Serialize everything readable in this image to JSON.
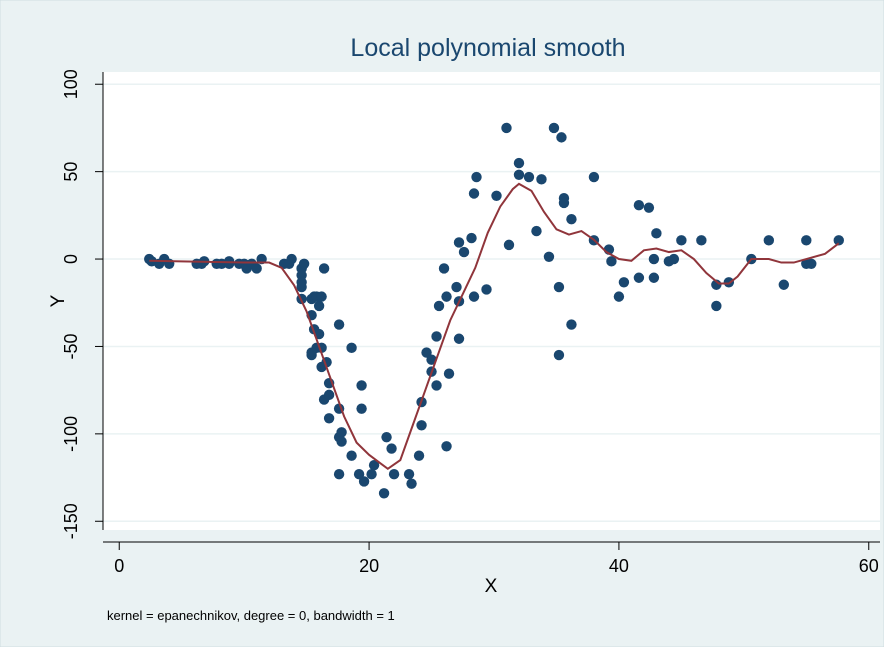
{
  "chart_data": {
    "type": "scatter",
    "title": "Local polynomial smooth",
    "xlabel": "X",
    "ylabel": "Y",
    "note": "kernel = epanechnikov, degree = 0, bandwidth = 1",
    "xlim": [
      -1.3,
      60.9
    ],
    "ylim": [
      -155,
      107
    ],
    "xticks": [
      0,
      20,
      40,
      60
    ],
    "yticks": [
      -150,
      -100,
      -50,
      0,
      50,
      100
    ],
    "grid": true,
    "points": {
      "color": "#1a476f",
      "x": [
        2.4,
        2.6,
        3.2,
        3.6,
        4,
        6.2,
        6.6,
        6.8,
        7.8,
        8.2,
        8.8,
        8.8,
        9.6,
        10,
        10.2,
        10.6,
        11,
        11.4,
        13.2,
        13.6,
        13.8,
        14.6,
        14.6,
        14.6,
        14.6,
        14.6,
        14.6,
        14.8,
        15.4,
        15.4,
        15.4,
        15.4,
        15.6,
        15.6,
        15.8,
        15.8,
        16,
        16,
        16.2,
        16.2,
        16.2,
        16.4,
        16.4,
        16.6,
        16.8,
        16.8,
        16.8,
        17.6,
        17.6,
        17.6,
        17.6,
        17.8,
        17.8,
        18.6,
        18.6,
        19.2,
        19.4,
        19.4,
        19.6,
        20.2,
        20.4,
        21.2,
        21.4,
        21.8,
        22,
        23.2,
        23.4,
        24,
        24.2,
        24.2,
        24.6,
        25,
        25,
        25.4,
        25.4,
        25.6,
        26,
        26.2,
        26.2,
        26.4,
        27,
        27.2,
        27.2,
        27.2,
        27.6,
        28.2,
        28.4,
        28.4,
        28.6,
        29.4,
        30.2,
        31,
        31.2,
        32,
        32,
        32.8,
        33.4,
        33.8,
        34.4,
        34.8,
        35.2,
        35.2,
        35.4,
        35.6,
        35.6,
        36.2,
        36.2,
        38,
        38,
        39.2,
        39.4,
        40,
        40.4,
        41.6,
        41.6,
        42.4,
        42.8,
        42.8,
        43,
        44,
        44.4,
        45,
        46.6,
        47.8,
        47.8,
        48.8,
        50.6,
        52,
        53.2,
        55,
        55,
        55.4,
        57.6
      ],
      "values": [
        0,
        -1.3,
        -2.7,
        0,
        -2.7,
        -2.7,
        -2.7,
        -1.3,
        -2.7,
        -2.7,
        -1.3,
        -2.7,
        -2.7,
        -2.7,
        -5.4,
        -2.7,
        -5.4,
        0,
        -2.7,
        -2.7,
        0,
        -13.3,
        -5.4,
        -5.4,
        -9.3,
        -16,
        -22.8,
        -2.7,
        -22.8,
        -32.1,
        -53.5,
        -54.9,
        -40.2,
        -21.5,
        -21.5,
        -50.8,
        -42.9,
        -26.8,
        -21.5,
        -50.8,
        -61.7,
        -5.4,
        -80.4,
        -59,
        -71,
        -91.1,
        -77.7,
        -37.5,
        -85.6,
        -123.1,
        -101.9,
        -99.1,
        -104.4,
        -112.5,
        -50.8,
        -123.1,
        -85.6,
        -72.3,
        -127.2,
        -123.1,
        -117.9,
        -134,
        -101.9,
        -108.4,
        -123.1,
        -123.1,
        -128.5,
        -112.5,
        -95.1,
        -81.8,
        -53.5,
        -64.4,
        -57.6,
        -72.3,
        -44.3,
        -26.8,
        -5.4,
        -107.1,
        -21.5,
        -65.6,
        -16,
        -45.6,
        -24.2,
        9.5,
        4,
        12,
        -21.5,
        37.5,
        46.9,
        -17.4,
        36.2,
        75,
        8.1,
        54.9,
        48.2,
        46.9,
        16,
        45.6,
        1.3,
        75,
        -16,
        -54.9,
        69.6,
        34.8,
        32.1,
        -37.5,
        22.8,
        46.9,
        10.7,
        5.4,
        -1.3,
        -21.5,
        -13.3,
        30.8,
        -10.7,
        29.4,
        0,
        -10.7,
        14.7,
        -1.3,
        0,
        10.7,
        10.7,
        -26.8,
        -14.7,
        -13.3,
        0,
        10.7,
        -14.7,
        -2.7,
        10.7,
        -2.7,
        10.7
      ]
    },
    "smooth": {
      "color": "#90353b",
      "x": [
        2.4,
        6,
        10,
        12,
        13,
        14,
        15,
        16,
        17,
        18,
        19,
        20,
        21.5,
        22.5,
        23.5,
        24.5,
        25.5,
        26.5,
        27.5,
        28.5,
        29.5,
        30.5,
        31.5,
        32,
        33,
        34,
        35,
        36,
        37,
        38,
        39,
        40,
        41,
        42,
        43,
        44,
        45,
        46,
        47,
        48,
        48.8,
        49.5,
        50.6,
        52,
        53,
        54,
        55,
        56.5,
        57.6
      ],
      "values": [
        -1,
        -1.5,
        -2,
        -2,
        -5,
        -15,
        -30,
        -50,
        -70,
        -90,
        -105,
        -112,
        -120,
        -115,
        -95,
        -75,
        -55,
        -35,
        -20,
        -5,
        15,
        30,
        40,
        43,
        39,
        27,
        17,
        14,
        16,
        11,
        4,
        0,
        -1,
        5,
        6,
        4,
        5,
        0,
        -8,
        -14,
        -14,
        -10,
        0,
        0,
        -2,
        -2,
        0,
        3,
        9
      ]
    }
  }
}
